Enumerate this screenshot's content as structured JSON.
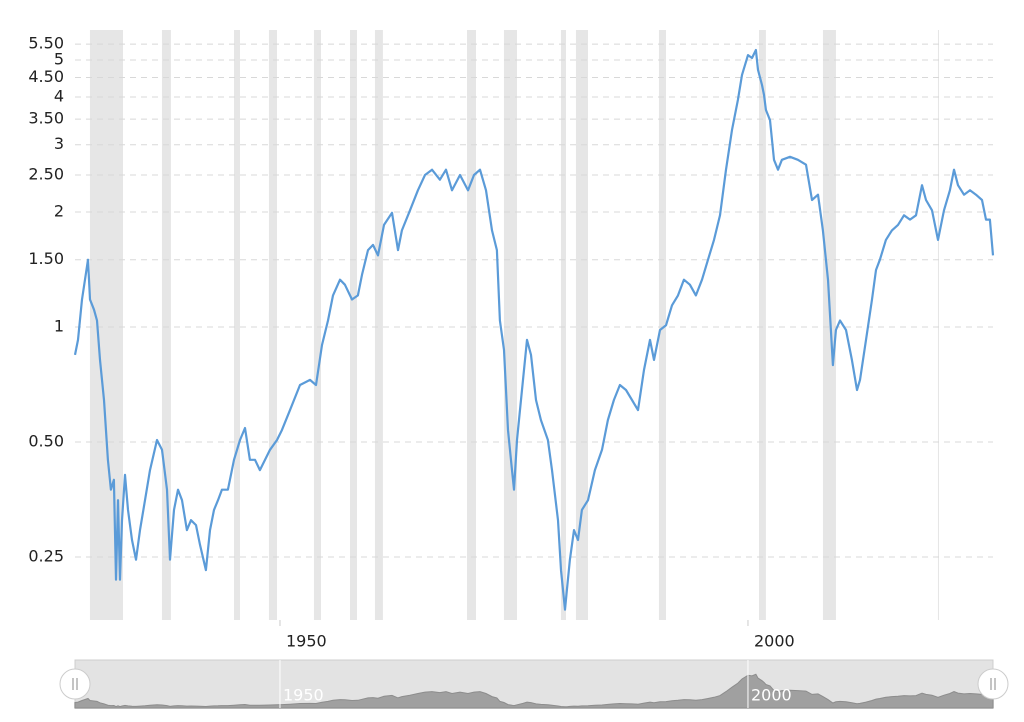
{
  "chart_data": {
    "type": "line",
    "color": "#5b9bd8",
    "recession_color": "#e6e6e6",
    "log": true,
    "grid": true,
    "x": [
      1928.1,
      1928.42,
      1928.85,
      1929.49,
      1929.7,
      1930.13,
      1930.45,
      1930.77,
      1931.2,
      1931.62,
      1931.94,
      1932.26,
      1932.48,
      1932.69,
      1932.91,
      1933.12,
      1933.44,
      1933.76,
      1934.19,
      1934.62,
      1935.04,
      1935.58,
      1936.11,
      1936.86,
      1937.39,
      1937.93,
      1938.25,
      1938.68,
      1939.1,
      1939.53,
      1940.06,
      1940.49,
      1941.03,
      1941.45,
      1942.09,
      1942.52,
      1942.95,
      1943.38,
      1943.8,
      1944.44,
      1945.09,
      1945.73,
      1946.26,
      1946.79,
      1947.33,
      1947.86,
      1948.93,
      1949.68,
      1950.21,
      1951.07,
      1952.14,
      1953.21,
      1953.85,
      1954.49,
      1955.13,
      1955.66,
      1956.41,
      1956.94,
      1957.69,
      1958.33,
      1958.76,
      1959.4,
      1959.94,
      1960.47,
      1961.11,
      1961.97,
      1962.61,
      1963.03,
      1963.89,
      1964.74,
      1965.49,
      1966.24,
      1967.09,
      1967.74,
      1968.38,
      1969.23,
      1970.09,
      1970.73,
      1971.37,
      1972.01,
      1972.65,
      1973.18,
      1973.5,
      1973.93,
      1974.36,
      1974.79,
      1975.0,
      1975.32,
      1975.96,
      1976.39,
      1976.82,
      1977.35,
      1977.88,
      1978.63,
      1979.06,
      1979.7,
      1980.02,
      1980.45,
      1980.66,
      1980.98,
      1981.41,
      1981.84,
      1982.26,
      1982.91,
      1983.65,
      1984.4,
      1985.04,
      1985.68,
      1986.32,
      1986.97,
      1987.61,
      1988.25,
      1988.89,
      1989.53,
      1989.96,
      1990.6,
      1991.24,
      1991.88,
      1992.52,
      1993.16,
      1993.8,
      1994.44,
      1995.09,
      1995.73,
      1996.37,
      1997.01,
      1997.65,
      1998.29,
      1998.93,
      1999.36,
      2000.0,
      2000.43,
      2000.85,
      2001.07,
      2001.5,
      2001.71,
      2001.92,
      2002.35,
      2002.78,
      2003.21,
      2003.63,
      2004.49,
      2005.34,
      2006.2,
      2006.84,
      2007.48,
      2008.01,
      2008.55,
      2009.08,
      2009.4,
      2009.83,
      2010.47,
      2011.11,
      2011.65,
      2011.97,
      2012.61,
      2013.25,
      2013.68,
      2014.1,
      2014.74,
      2015.38,
      2016.03,
      2016.67,
      2017.31,
      2017.95,
      2018.59,
      2019.02,
      2019.66,
      2020.3,
      2020.94,
      2021.58,
      2022.01,
      2022.44,
      2023.08,
      2023.72,
      2024.36,
      2025.0,
      2025.43,
      2025.85,
      2026.18
    ],
    "values": [
      0.845,
      0.925,
      1.18,
      1.5,
      1.18,
      1.11,
      1.04,
      0.82,
      0.644,
      0.449,
      0.375,
      0.398,
      0.218,
      0.352,
      0.218,
      0.312,
      0.41,
      0.332,
      0.277,
      0.246,
      0.294,
      0.352,
      0.422,
      0.506,
      0.477,
      0.375,
      0.246,
      0.332,
      0.375,
      0.352,
      0.294,
      0.312,
      0.303,
      0.269,
      0.231,
      0.294,
      0.332,
      0.352,
      0.375,
      0.375,
      0.449,
      0.506,
      0.544,
      0.449,
      0.449,
      0.422,
      0.477,
      0.506,
      0.537,
      0.606,
      0.705,
      0.727,
      0.705,
      0.897,
      1.04,
      1.21,
      1.33,
      1.29,
      1.18,
      1.21,
      1.37,
      1.59,
      1.64,
      1.54,
      1.85,
      1.99,
      1.59,
      1.79,
      2.02,
      2.28,
      2.5,
      2.58,
      2.43,
      2.58,
      2.28,
      2.5,
      2.28,
      2.5,
      2.58,
      2.28,
      1.79,
      1.59,
      1.04,
      0.871,
      0.537,
      0.422,
      0.375,
      0.506,
      0.727,
      0.925,
      0.845,
      0.644,
      0.571,
      0.506,
      0.422,
      0.312,
      0.231,
      0.182,
      0.205,
      0.246,
      0.294,
      0.277,
      0.332,
      0.352,
      0.422,
      0.477,
      0.571,
      0.644,
      0.705,
      0.684,
      0.644,
      0.606,
      0.772,
      0.925,
      0.82,
      0.982,
      1.01,
      1.14,
      1.21,
      1.33,
      1.29,
      1.21,
      1.33,
      1.5,
      1.69,
      1.96,
      2.58,
      3.28,
      3.93,
      4.57,
      5.15,
      5.06,
      5.31,
      4.71,
      4.3,
      4.05,
      3.7,
      3.48,
      2.74,
      2.58,
      2.74,
      2.79,
      2.74,
      2.66,
      2.15,
      2.22,
      1.79,
      1.33,
      0.795,
      0.982,
      1.04,
      0.982,
      0.82,
      0.684,
      0.727,
      0.925,
      1.18,
      1.41,
      1.5,
      1.69,
      1.79,
      1.85,
      1.96,
      1.91,
      1.96,
      2.35,
      2.15,
      2.02,
      1.69,
      2.02,
      2.28,
      2.58,
      2.35,
      2.22,
      2.28,
      2.22,
      2.15,
      1.91,
      1.91,
      1.54
    ],
    "recessions": [
      [
        1929.7,
        1933.23
      ],
      [
        1937.39,
        1938.35
      ],
      [
        1945.09,
        1945.73
      ],
      [
        1948.82,
        1949.68
      ],
      [
        1953.63,
        1954.38
      ],
      [
        1957.48,
        1958.23
      ],
      [
        1960.15,
        1961.0
      ],
      [
        1969.98,
        1970.94
      ],
      [
        1973.93,
        1975.32
      ],
      [
        1980.02,
        1980.56
      ],
      [
        1981.62,
        1982.91
      ],
      [
        1990.49,
        1991.24
      ],
      [
        2001.18,
        2001.92
      ],
      [
        2008.01,
        2009.4
      ],
      [
        2020.3,
        2020.4
      ]
    ],
    "xlim": [
      1928.1,
      2026.18
    ],
    "xticks": [
      1950,
      2000
    ],
    "ylim": [
      0.171,
      5.99
    ],
    "yticks": [
      0.25,
      {
        "value": 0.5,
        "label": "0.50"
      },
      1,
      {
        "value": 1.5,
        "label": "1.50"
      },
      2,
      {
        "value": 2.5,
        "label": "2.50"
      },
      3,
      {
        "value": 3.5,
        "label": "3.50"
      },
      4,
      {
        "value": 4.5,
        "label": "4.50"
      },
      5,
      {
        "value": 5.5,
        "label": "5.50"
      }
    ]
  }
}
